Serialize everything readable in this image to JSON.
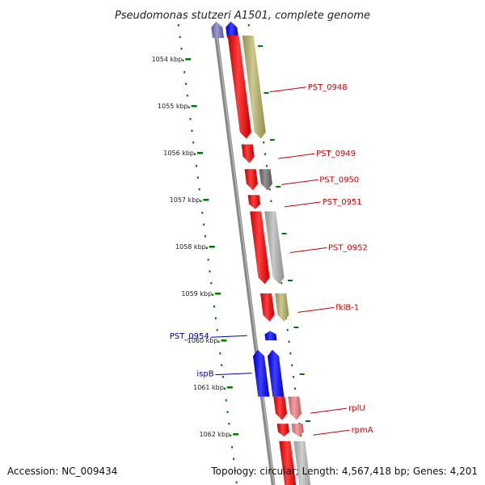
{
  "title": "Pseudomonas stutzeri A1501, complete genome",
  "footer": {
    "accession": "Accession: NC_009434",
    "summary": "Topology: circular; Length: 4,567,418 bp; Genes: 4,201"
  },
  "ruler": {
    "unit": "kbp",
    "start_kbp": 1053.5,
    "end_kbp": 1063.3,
    "ticks": [
      {
        "kbp": 1054,
        "label": "1054 kbp"
      },
      {
        "kbp": 1055,
        "label": "1055 kbp"
      },
      {
        "kbp": 1056,
        "label": "1056 kbp"
      },
      {
        "kbp": 1057,
        "label": "1057 kbp"
      },
      {
        "kbp": 1058,
        "label": "1058 kbp"
      },
      {
        "kbp": 1059,
        "label": "1059 kbp"
      },
      {
        "kbp": 1060,
        "label": "1060 kbp"
      },
      {
        "kbp": 1061,
        "label": "1061 kbp"
      },
      {
        "kbp": 1062,
        "label": "1062 kbp"
      }
    ]
  },
  "colors": {
    "forward_gene": "#ff0000",
    "reverse_gene": "#0000ff",
    "backbone": "#808080",
    "tick": "#007700",
    "label_forward": "#cc0000",
    "label_reverse": "#000099"
  },
  "genes": [
    {
      "id": "top-reverse",
      "strand": "reverse",
      "start_kbp": 1053.2,
      "end_kbp": 1053.55,
      "color": "#0000ff",
      "label": ""
    },
    {
      "id": "top-reverse-shade",
      "strand": "reverse-outer",
      "start_kbp": 1053.2,
      "end_kbp": 1053.55,
      "color": "#7777bb",
      "label": ""
    },
    {
      "id": "PST_0948",
      "strand": "forward",
      "start_kbp": 1053.5,
      "end_kbp": 1055.7,
      "color": "#ff0000",
      "label": "PST_0948"
    },
    {
      "id": "PST_0948-cog",
      "strand": "forward-outer",
      "start_kbp": 1053.5,
      "end_kbp": 1055.7,
      "color": "#bdb76b",
      "label": ""
    },
    {
      "id": "PST_0949",
      "strand": "forward",
      "start_kbp": 1055.82,
      "end_kbp": 1056.22,
      "color": "#ff0000",
      "label": "PST_0949"
    },
    {
      "id": "PST_0950",
      "strand": "forward",
      "start_kbp": 1056.35,
      "end_kbp": 1056.8,
      "color": "#ff0000",
      "label": "PST_0950"
    },
    {
      "id": "PST_0950-cog",
      "strand": "forward-outer",
      "start_kbp": 1056.35,
      "end_kbp": 1056.8,
      "color": "#707070",
      "label": ""
    },
    {
      "id": "PST_0951",
      "strand": "forward",
      "start_kbp": 1056.9,
      "end_kbp": 1057.2,
      "color": "#ff0000",
      "label": "PST_0951"
    },
    {
      "id": "PST_0952",
      "strand": "forward",
      "start_kbp": 1057.25,
      "end_kbp": 1058.8,
      "color": "#ff0000",
      "label": "PST_0952"
    },
    {
      "id": "PST_0952-cog",
      "strand": "forward-outer",
      "start_kbp": 1057.25,
      "end_kbp": 1058.8,
      "color": "#b8b8b8",
      "label": ""
    },
    {
      "id": "fklB-1",
      "strand": "forward",
      "start_kbp": 1059.0,
      "end_kbp": 1059.6,
      "color": "#ff0000",
      "label": "fklB-1"
    },
    {
      "id": "fklB-1-cog",
      "strand": "forward-outer",
      "start_kbp": 1059.0,
      "end_kbp": 1059.6,
      "color": "#bdb76b",
      "label": ""
    },
    {
      "id": "PST_0954",
      "strand": "reverse",
      "start_kbp": 1059.8,
      "end_kbp": 1060.0,
      "color": "#0000ff",
      "label": "PST_0954"
    },
    {
      "id": "ispB",
      "strand": "reverse",
      "start_kbp": 1060.2,
      "end_kbp": 1061.2,
      "color": "#0000ff",
      "label": "ispB"
    },
    {
      "id": "ispB-left",
      "strand": "reverse-outer",
      "start_kbp": 1060.2,
      "end_kbp": 1061.2,
      "color": "#0000ff",
      "label": ""
    },
    {
      "id": "rplU",
      "strand": "forward",
      "start_kbp": 1061.2,
      "end_kbp": 1061.7,
      "color": "#ff0000",
      "label": "rplU"
    },
    {
      "id": "rplU-cog",
      "strand": "forward-outer",
      "start_kbp": 1061.2,
      "end_kbp": 1061.7,
      "color": "#f08080",
      "label": ""
    },
    {
      "id": "rpmA",
      "strand": "forward",
      "start_kbp": 1061.78,
      "end_kbp": 1062.05,
      "color": "#ff0000",
      "label": "rpmA"
    },
    {
      "id": "rpmA-cog",
      "strand": "forward-outer",
      "start_kbp": 1061.78,
      "end_kbp": 1062.05,
      "color": "#f08080",
      "label": ""
    },
    {
      "id": "bottom-forward",
      "strand": "forward",
      "start_kbp": 1062.15,
      "end_kbp": 1063.4,
      "color": "#ff0000",
      "label": ""
    },
    {
      "id": "bottom-forward-cog",
      "strand": "forward-outer",
      "start_kbp": 1062.15,
      "end_kbp": 1063.4,
      "color": "#c0c0c0",
      "label": ""
    }
  ]
}
